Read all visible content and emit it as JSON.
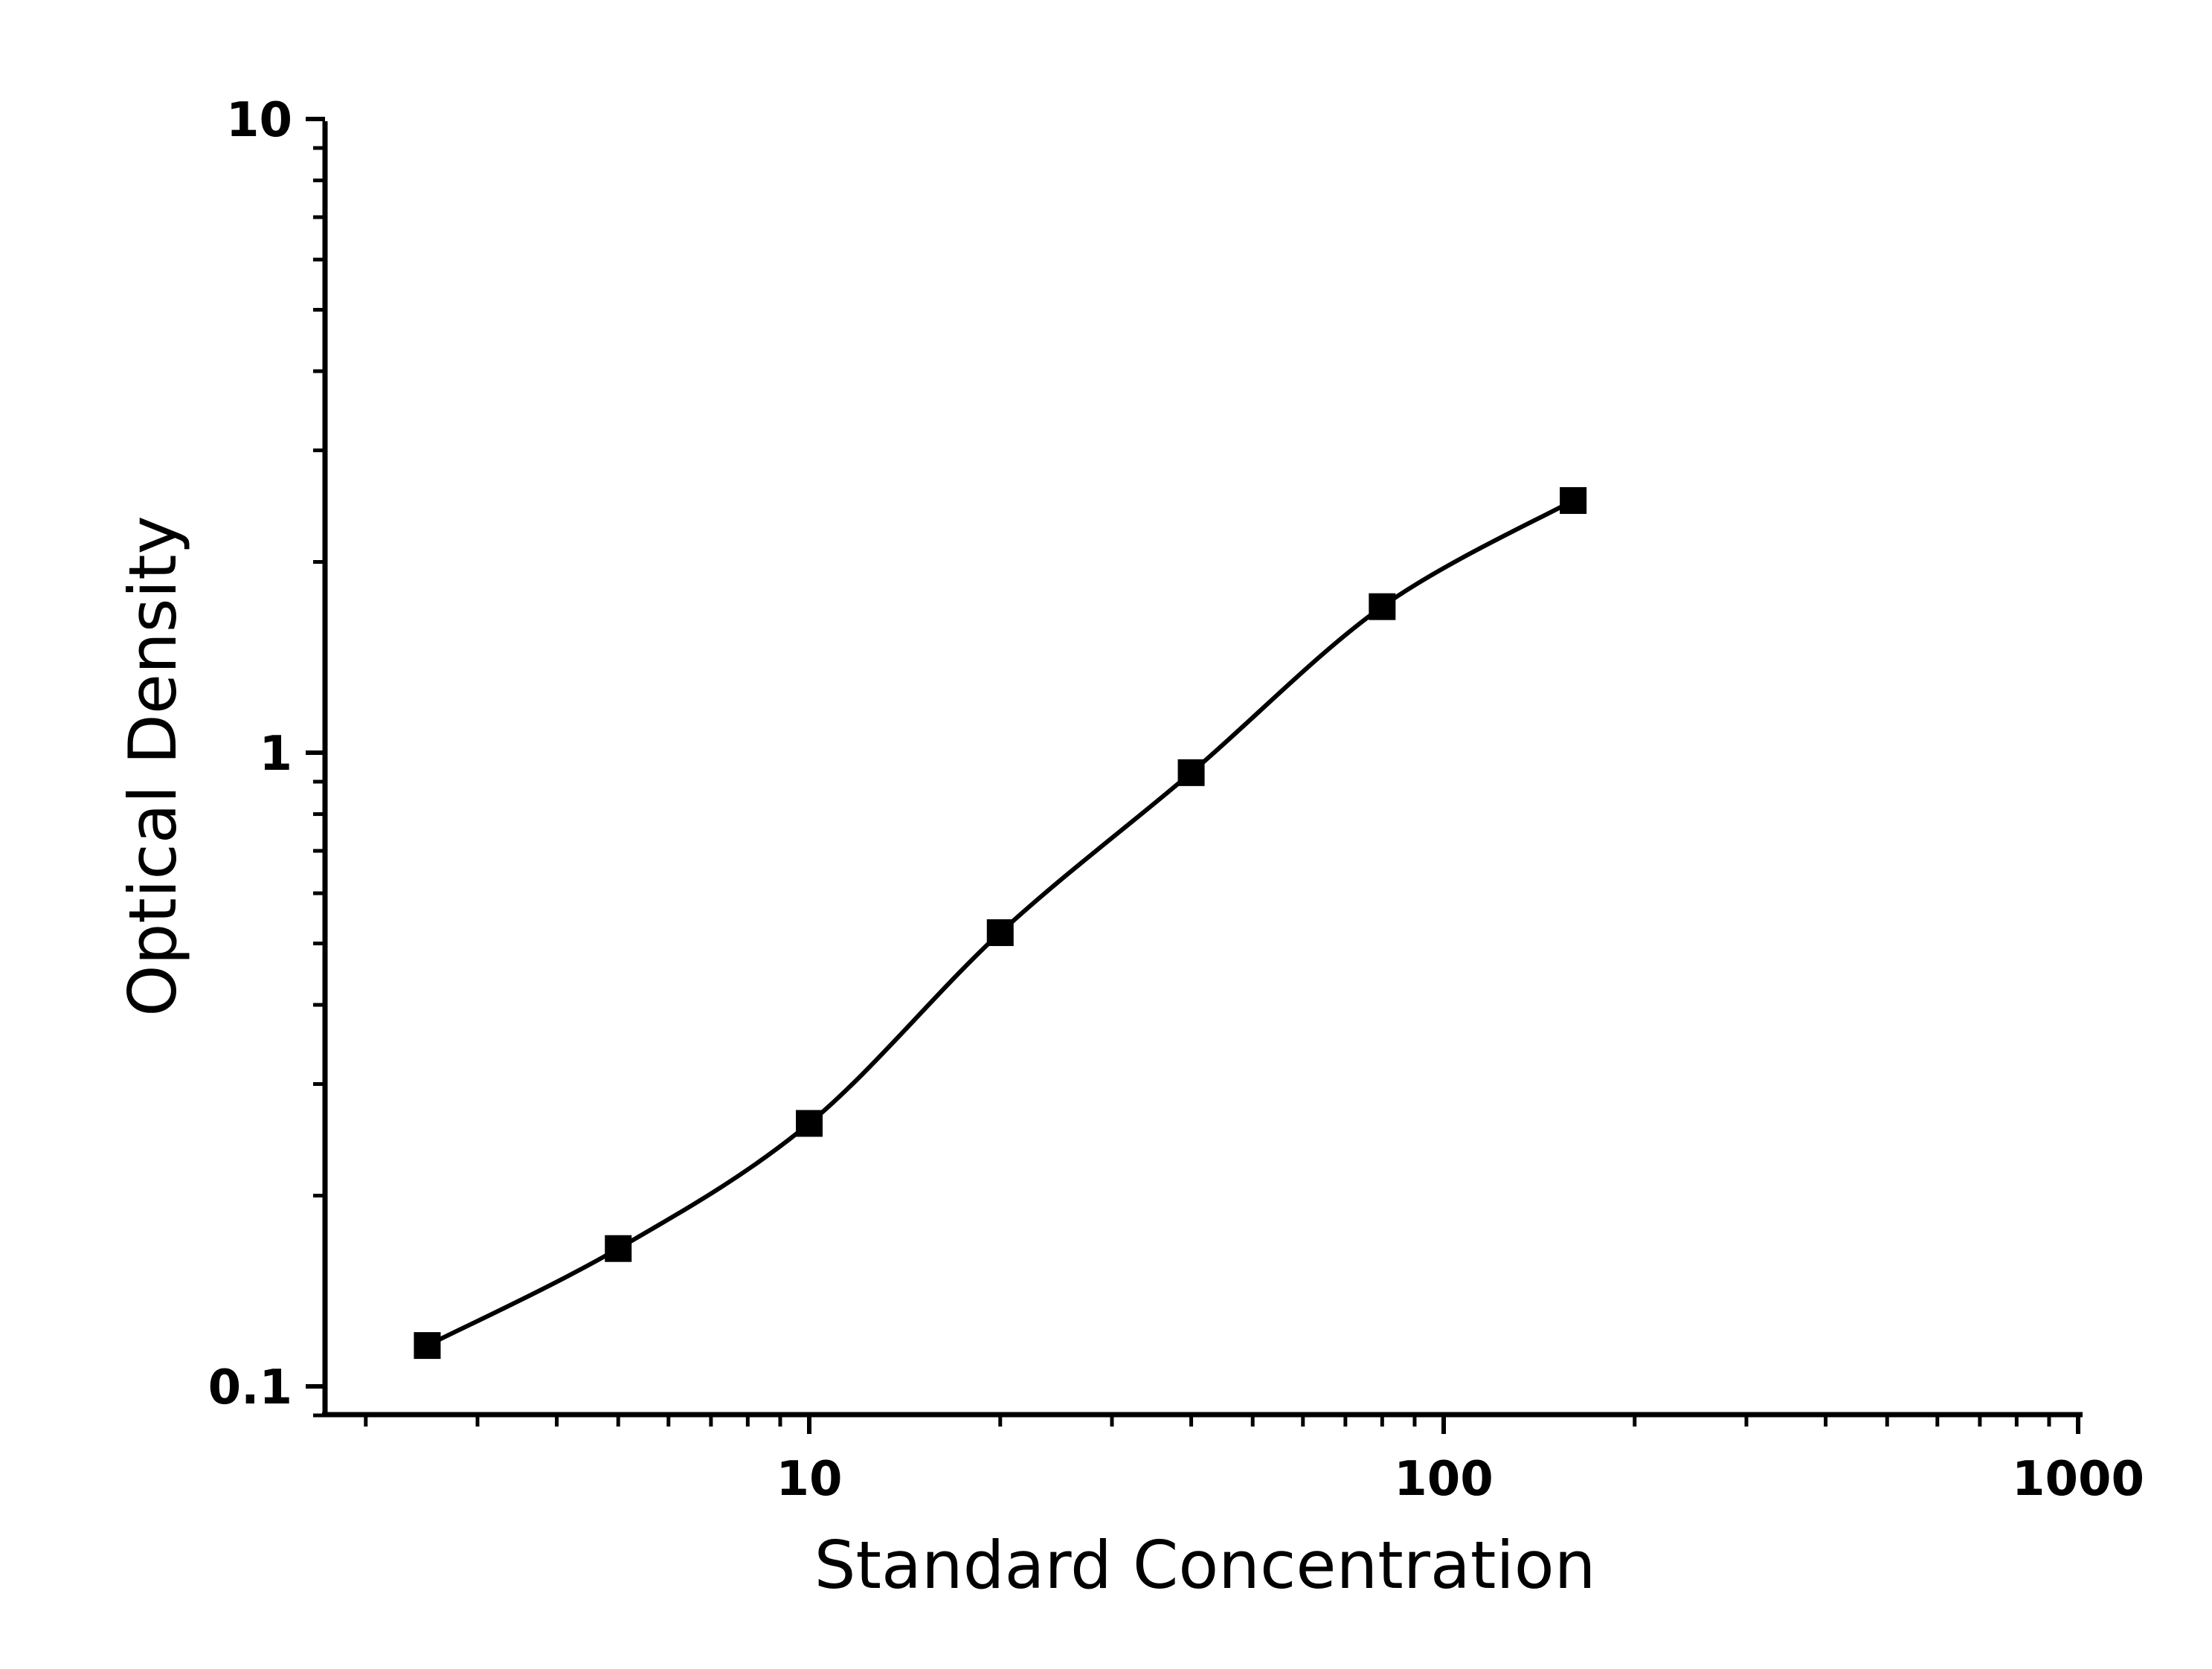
{
  "chart_data": {
    "type": "scatter",
    "title": "",
    "xlabel": "Standard Concentration",
    "ylabel": "Optical Density",
    "x_scale": "log",
    "y_scale": "log",
    "xlim": [
      2,
      1000
    ],
    "ylim": [
      0.09,
      10
    ],
    "x_ticks": [
      {
        "value": 10,
        "label": "10"
      },
      {
        "value": 100,
        "label": "100"
      },
      {
        "value": 1000,
        "label": "1000"
      }
    ],
    "y_ticks": [
      {
        "value": 0.1,
        "label": "0.1"
      },
      {
        "value": 1,
        "label": "1"
      },
      {
        "value": 10,
        "label": "10"
      }
    ],
    "grid": false,
    "legend": "none",
    "series": [
      {
        "marker": "square",
        "color": "#000000",
        "fit_line": true,
        "points": [
          {
            "x": 2.5,
            "y": 0.116
          },
          {
            "x": 5,
            "y": 0.165
          },
          {
            "x": 10,
            "y": 0.26
          },
          {
            "x": 20,
            "y": 0.52
          },
          {
            "x": 40,
            "y": 0.93
          },
          {
            "x": 80,
            "y": 1.7
          },
          {
            "x": 160,
            "y": 2.5
          }
        ]
      }
    ]
  }
}
